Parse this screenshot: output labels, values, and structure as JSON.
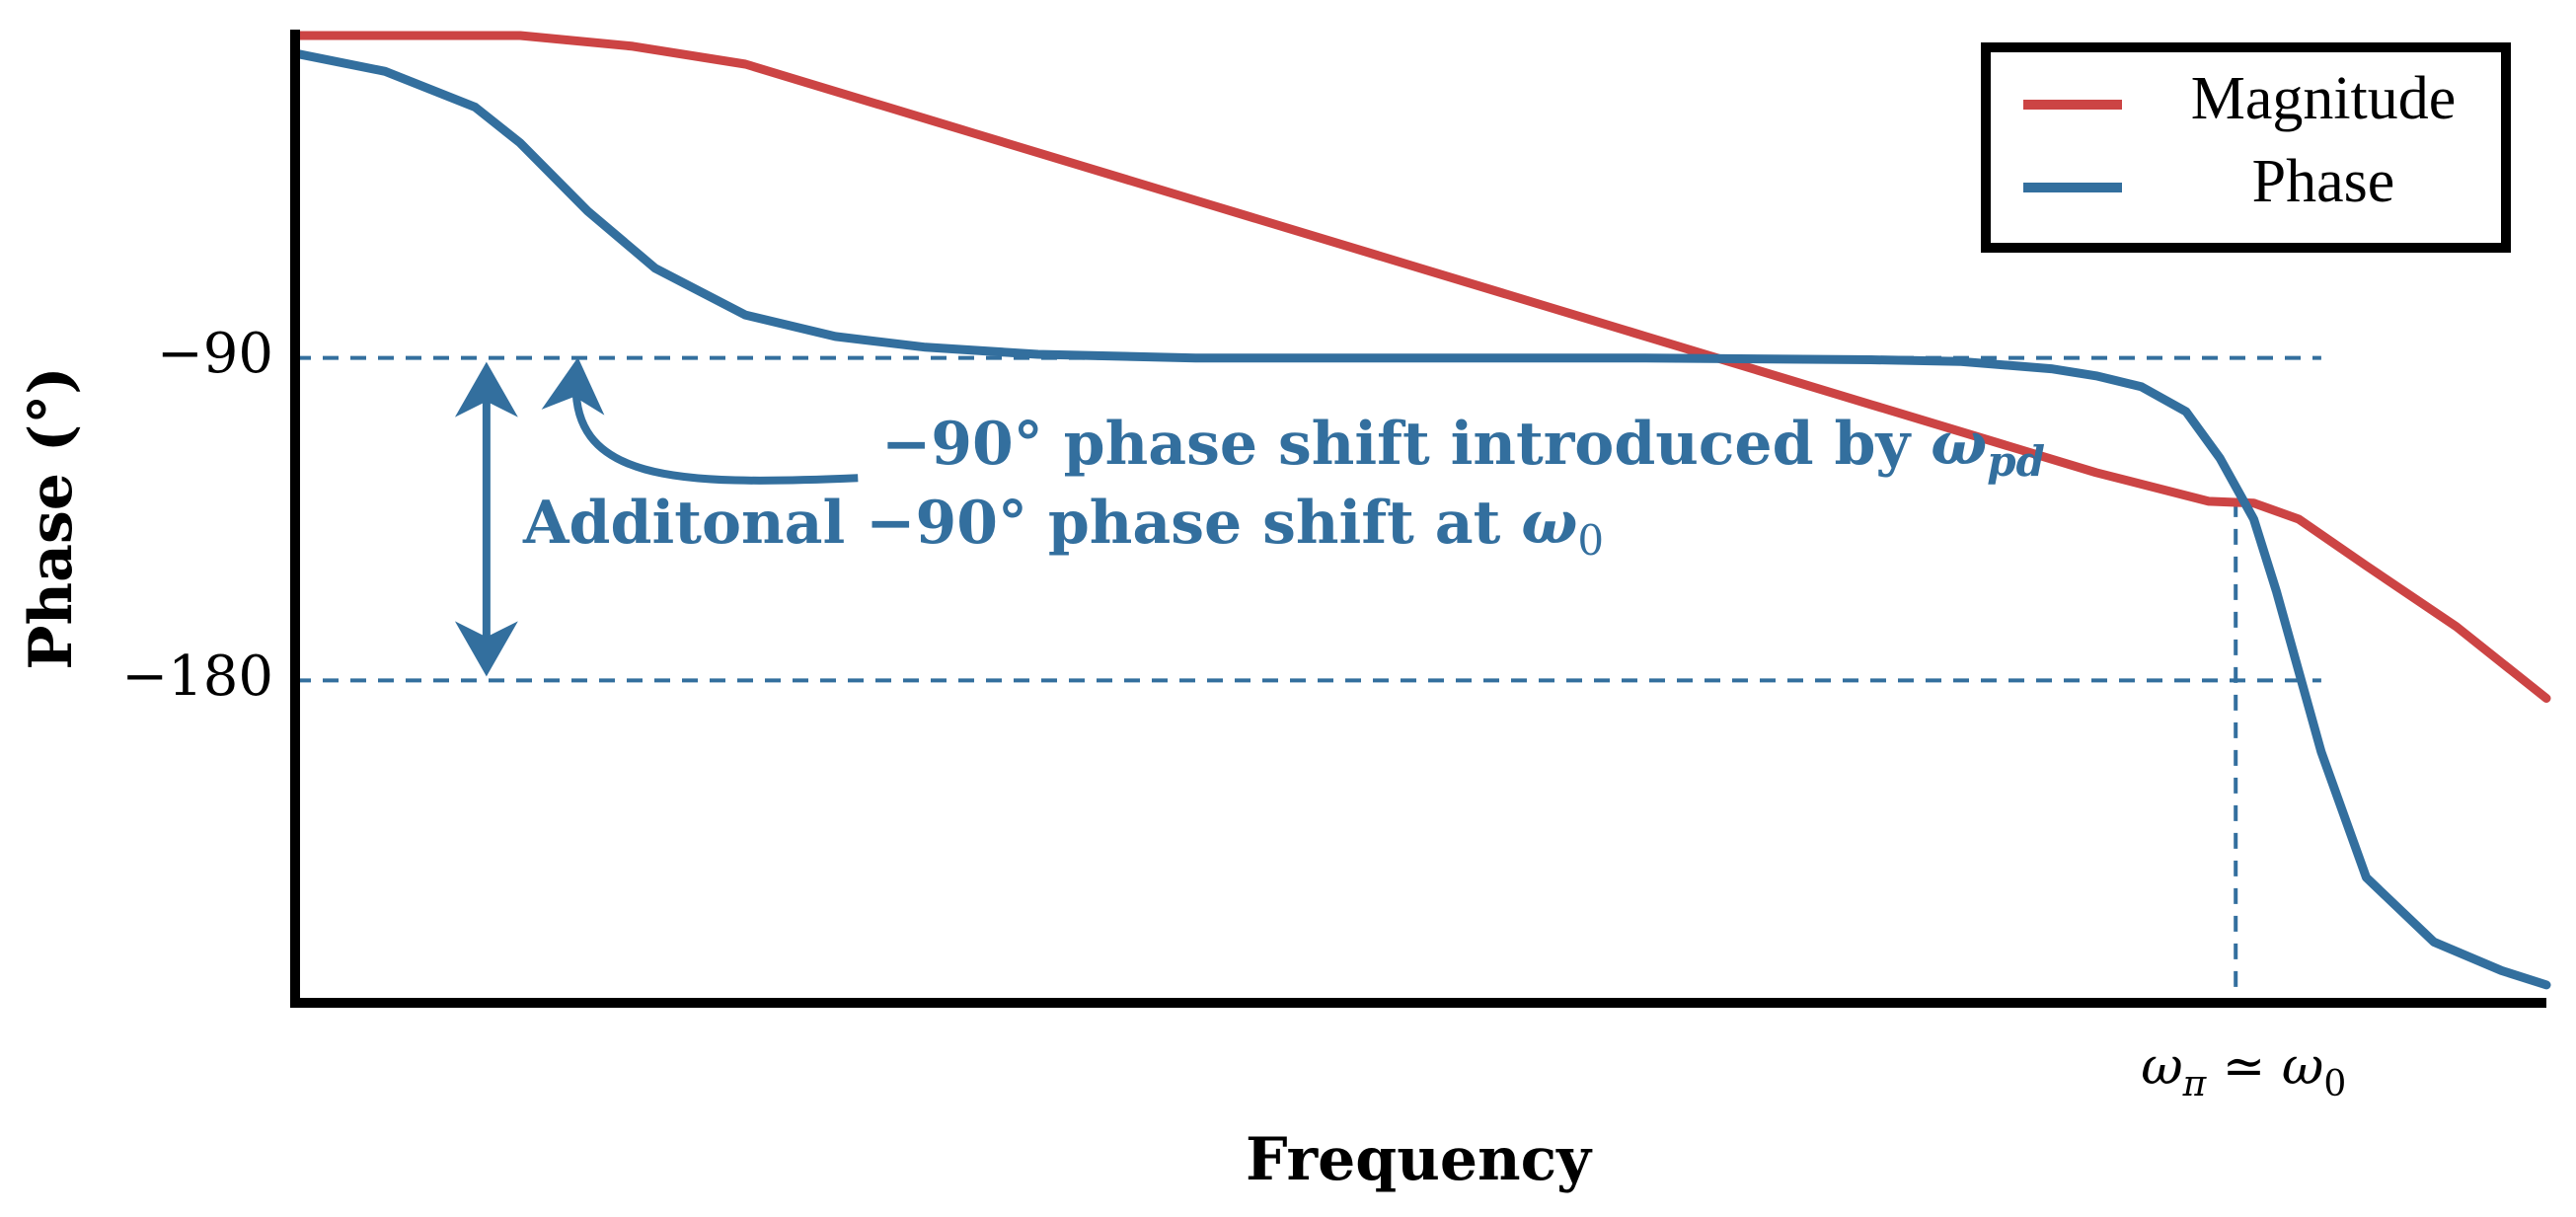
{
  "chart_data": {
    "type": "line",
    "title": "",
    "xlabel": "Frequency",
    "ylabel": "Phase (°)",
    "xscale": "log (unitless, decades)",
    "xlim": [
      0,
      10
    ],
    "ylim": [
      -270,
      0
    ],
    "grid": false,
    "legend": {
      "position": "top-right",
      "entries": [
        "Magnitude",
        "Phase"
      ]
    },
    "yticks": [
      {
        "value": -90,
        "label": "−90"
      },
      {
        "value": -180,
        "label": "−180"
      }
    ],
    "xticks": [
      {
        "value": 8.62,
        "label_base": "ω",
        "label_sub": "π",
        "label_op": " ≃ ",
        "label_base2": "ω",
        "label_sub2": "0"
      }
    ],
    "series": [
      {
        "name": "Magnitude",
        "color": "#cc4444",
        "x": [
          0,
          1,
          1.5,
          2,
          3,
          4,
          5,
          6,
          7,
          8,
          8.5,
          8.7,
          8.9,
          9.2,
          9.6,
          10
        ],
        "y": [
          0,
          0,
          -3,
          -8,
          -27,
          -46,
          -65,
          -84,
          -103,
          -122,
          -130,
          -130.5,
          -135,
          -148,
          -165,
          -185
        ]
      },
      {
        "name": "Phase",
        "color": "#336f9e",
        "x": [
          0,
          0.4,
          0.8,
          1.0,
          1.3,
          1.6,
          2.0,
          2.4,
          2.8,
          3.3,
          4.0,
          5.0,
          6.0,
          7.0,
          7.4,
          7.8,
          8.0,
          8.2,
          8.4,
          8.55,
          8.7,
          8.8,
          9.0,
          9.2,
          9.5,
          9.8,
          10
        ],
        "y": [
          -5,
          -10,
          -20,
          -30,
          -49,
          -65,
          -78,
          -84,
          -87,
          -89,
          -90,
          -90,
          -90,
          -90.5,
          -91,
          -93,
          -95,
          -98,
          -105,
          -118,
          -135,
          -155,
          -200,
          -235,
          -253,
          -261,
          -265
        ]
      }
    ],
    "reference_lines": [
      {
        "orientation": "horizontal",
        "y": -90,
        "style": "dashed"
      },
      {
        "orientation": "horizontal",
        "y": -180,
        "style": "dashed"
      },
      {
        "orientation": "vertical",
        "x": 8.62,
        "y_top": -130,
        "style": "dashed"
      }
    ],
    "annotations": [
      {
        "id": "wpd",
        "text_prefix": "−90° phase shift introduced by ",
        "text_math": "ω",
        "text_sub": "pd",
        "arrow_from": [
          2.5,
          -123.5
        ],
        "arrow_to": [
          1.25,
          -92
        ]
      },
      {
        "id": "w0",
        "text_prefix": "Additonal −90° phase shift at ",
        "text_math": "ω",
        "text_sub": "0",
        "double_arrow_x": 0.85,
        "double_arrow_y": [
          -90,
          -180
        ]
      }
    ]
  }
}
